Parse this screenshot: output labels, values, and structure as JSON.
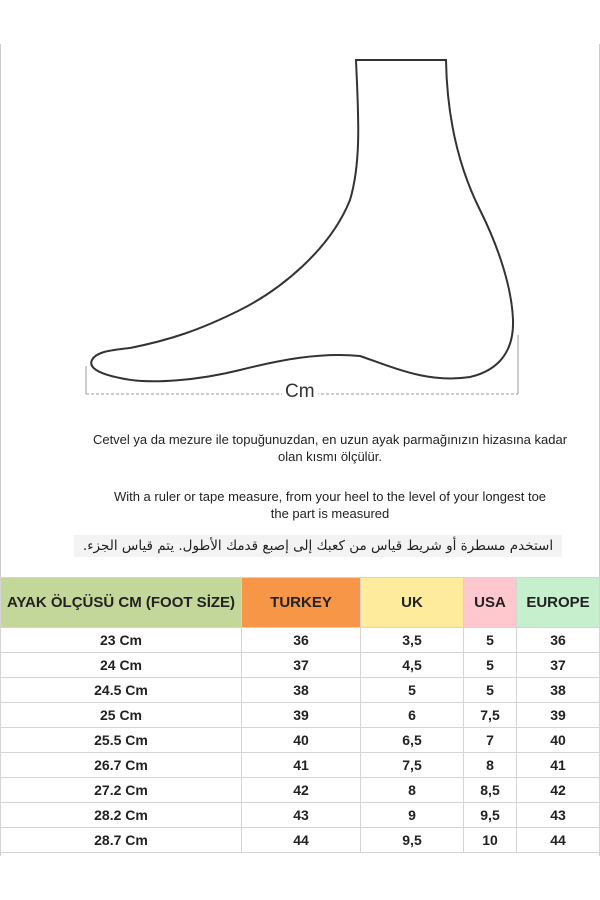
{
  "illustration": {
    "measure_label": "Cm"
  },
  "instructions": {
    "turkish_line1": "Cetvel ya da mezure ile topuğunuzdan, en uzun ayak parmağınızın hizasına kadar",
    "turkish_line2": "olan kısmı ölçülür.",
    "english_line1": "With a ruler or tape measure, from your heel to the level of your longest toe",
    "english_line2": "the part is measured",
    "arabic": "استخدم مسطرة أو شريط قياس من  كعبك إلى إصبع قدمك الأطول.  يتم قياس الجزء."
  },
  "table": {
    "headers": [
      {
        "label": "AYAK ÖLÇÜSÜ CM (FOOT SİZE)",
        "color": "#c4d79b"
      },
      {
        "label": "TURKEY",
        "color": "#f79646"
      },
      {
        "label": "UK",
        "color": "#ffeb9c"
      },
      {
        "label": "USA",
        "color": "#ffc7ce"
      },
      {
        "label": "EUROPE",
        "color": "#c6efce"
      }
    ],
    "rows": [
      [
        "23 Cm",
        "36",
        "3,5",
        "5",
        "36"
      ],
      [
        "24 Cm",
        "37",
        "4,5",
        "5",
        "37"
      ],
      [
        "24.5 Cm",
        "38",
        "5",
        "5",
        "38"
      ],
      [
        "25 Cm",
        "39",
        "6",
        "7,5",
        "39"
      ],
      [
        "25.5 Cm",
        "40",
        "6,5",
        "7",
        "40"
      ],
      [
        "26.7 Cm",
        "41",
        "7,5",
        "8",
        "41"
      ],
      [
        "27.2 Cm",
        "42",
        "8",
        "8,5",
        "42"
      ],
      [
        "28.2 Cm",
        "43",
        "9",
        "9,5",
        "43"
      ],
      [
        "28.7 Cm",
        "44",
        "9,5",
        "10",
        "44"
      ]
    ]
  }
}
